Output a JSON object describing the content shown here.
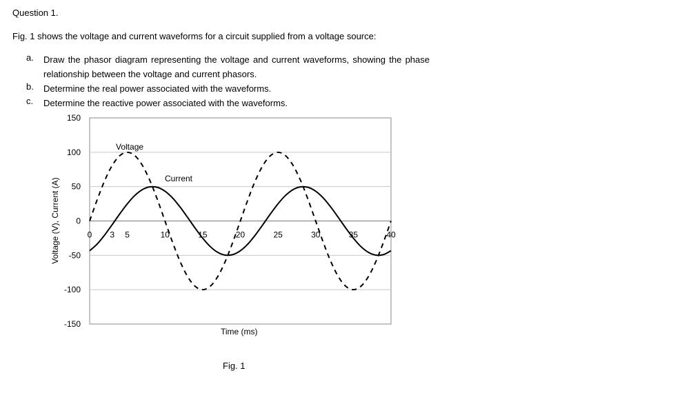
{
  "question": {
    "title": "Question 1.",
    "intro": "Fig. 1 shows the voltage and current waveforms for a circuit supplied from a voltage source:",
    "items": [
      {
        "label": "a.",
        "text": "Draw the phasor diagram representing the voltage and current waveforms, showing the phase relationship between the voltage and current phasors."
      },
      {
        "label": "b.",
        "text": "Determine the real power associated with the waveforms."
      },
      {
        "label": "c.",
        "text": "Determine the reactive power associated with the waveforms."
      }
    ],
    "caption": "Fig. 1"
  },
  "chart_data": {
    "type": "line",
    "title": "",
    "xlabel": "Time (ms)",
    "ylabel": "Voltage (V), Current (A)",
    "xlim": [
      0,
      40
    ],
    "ylim": [
      -150,
      150
    ],
    "x_ticks": [
      0,
      3,
      5,
      10,
      15,
      20,
      25,
      30,
      35,
      40
    ],
    "y_ticks": [
      150,
      100,
      50,
      0,
      -50,
      -100,
      -150
    ],
    "grid": true,
    "x": [
      0,
      1,
      2,
      3,
      4,
      5,
      6,
      7,
      8,
      9,
      10,
      11,
      12,
      13,
      14,
      15,
      16,
      17,
      18,
      19,
      20,
      21,
      22,
      23,
      24,
      25,
      26,
      27,
      28,
      29,
      30,
      31,
      32,
      33,
      34,
      35,
      36,
      37,
      38,
      39,
      40
    ],
    "series": [
      {
        "name": "Voltage",
        "style": "dashed",
        "color": "#000000",
        "values": [
          0,
          30.9,
          58.8,
          80.9,
          95.1,
          100,
          95.1,
          80.9,
          58.8,
          30.9,
          0,
          -30.9,
          -58.8,
          -80.9,
          -95.1,
          -100,
          -95.1,
          -80.9,
          -58.8,
          -30.9,
          0,
          30.9,
          58.8,
          80.9,
          95.1,
          100,
          95.1,
          80.9,
          58.8,
          30.9,
          0,
          -30.9,
          -58.8,
          -80.9,
          -95.1,
          -100,
          -95.1,
          -80.9,
          -58.8,
          -30.9,
          0
        ]
      },
      {
        "name": "Current",
        "style": "solid",
        "color": "#000000",
        "values": [
          -43.3,
          -33.5,
          -20.3,
          -5.2,
          10.4,
          25,
          37.2,
          45.7,
          49.7,
          48.9,
          43.3,
          33.5,
          20.3,
          5.2,
          -10.4,
          -25,
          -37.2,
          -45.7,
          -49.7,
          -48.9,
          -43.3,
          -33.5,
          -20.3,
          -5.2,
          10.4,
          25,
          37.2,
          45.7,
          49.7,
          48.9,
          43.3,
          33.5,
          20.3,
          5.2,
          -10.4,
          -25,
          -37.2,
          -45.7,
          -49.7,
          -48.9,
          -43.3
        ]
      }
    ]
  }
}
